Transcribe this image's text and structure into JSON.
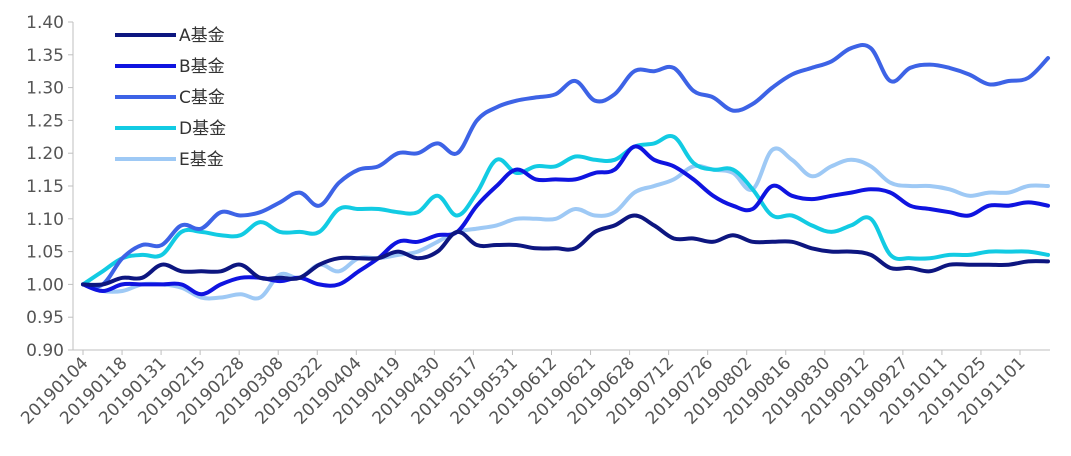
{
  "chart_data": {
    "type": "line",
    "title": "",
    "xlabel": "",
    "ylabel": "",
    "ylim": [
      0.9,
      1.4
    ],
    "y_ticks": [
      "0.90",
      "0.95",
      "1.00",
      "1.05",
      "1.10",
      "1.15",
      "1.20",
      "1.25",
      "1.30",
      "1.35",
      "1.40"
    ],
    "grid": false,
    "legend_position": "top-left",
    "x_tick_labels": [
      "20190104",
      "20190118",
      "20190131",
      "20190215",
      "20190228",
      "20190308",
      "20190322",
      "20190404",
      "20190419",
      "20190430",
      "20190517",
      "20190531",
      "20190612",
      "20190621",
      "20190628",
      "20190712",
      "20190726",
      "20190802",
      "20190816",
      "20190830",
      "20190912",
      "20190927",
      "20191011",
      "20191025",
      "20191101"
    ],
    "series": [
      {
        "name": "A基金",
        "color": "#0d1680",
        "width": 4,
        "values": [
          1.0,
          1.0,
          1.01,
          1.01,
          1.03,
          1.02,
          1.02,
          1.02,
          1.03,
          1.01,
          1.01,
          1.01,
          1.03,
          1.04,
          1.04,
          1.04,
          1.05,
          1.04,
          1.05,
          1.08,
          1.06,
          1.06,
          1.06,
          1.055,
          1.055,
          1.055,
          1.08,
          1.09,
          1.105,
          1.09,
          1.07,
          1.07,
          1.065,
          1.075,
          1.065,
          1.065,
          1.065,
          1.055,
          1.05,
          1.05,
          1.045,
          1.025,
          1.025,
          1.02,
          1.03,
          1.03,
          1.03,
          1.03,
          1.035,
          1.035
        ]
      },
      {
        "name": "B基金",
        "color": "#0f14e0",
        "width": 4,
        "values": [
          1.0,
          0.99,
          1.0,
          1.0,
          1.0,
          1.0,
          0.985,
          1.0,
          1.01,
          1.01,
          1.005,
          1.01,
          1.0,
          1.0,
          1.02,
          1.04,
          1.065,
          1.065,
          1.075,
          1.08,
          1.12,
          1.15,
          1.175,
          1.16,
          1.16,
          1.16,
          1.17,
          1.175,
          1.21,
          1.19,
          1.18,
          1.16,
          1.135,
          1.12,
          1.115,
          1.15,
          1.135,
          1.13,
          1.135,
          1.14,
          1.145,
          1.14,
          1.12,
          1.115,
          1.11,
          1.105,
          1.12,
          1.12,
          1.125,
          1.12
        ]
      },
      {
        "name": "C基金",
        "color": "#3d63e6",
        "width": 4,
        "values": [
          1.0,
          1.0,
          1.04,
          1.06,
          1.06,
          1.09,
          1.085,
          1.11,
          1.105,
          1.11,
          1.125,
          1.14,
          1.12,
          1.155,
          1.175,
          1.18,
          1.2,
          1.2,
          1.215,
          1.2,
          1.25,
          1.27,
          1.28,
          1.285,
          1.29,
          1.31,
          1.28,
          1.29,
          1.325,
          1.325,
          1.33,
          1.295,
          1.285,
          1.265,
          1.275,
          1.3,
          1.32,
          1.33,
          1.34,
          1.36,
          1.36,
          1.31,
          1.33,
          1.335,
          1.33,
          1.32,
          1.305,
          1.31,
          1.315,
          1.345
        ]
      },
      {
        "name": "D基金",
        "color": "#12cbe3",
        "width": 4,
        "values": [
          1.0,
          1.02,
          1.04,
          1.045,
          1.045,
          1.08,
          1.08,
          1.075,
          1.075,
          1.095,
          1.08,
          1.08,
          1.08,
          1.115,
          1.115,
          1.115,
          1.11,
          1.11,
          1.135,
          1.105,
          1.14,
          1.19,
          1.17,
          1.18,
          1.18,
          1.195,
          1.19,
          1.19,
          1.21,
          1.215,
          1.225,
          1.185,
          1.175,
          1.175,
          1.145,
          1.105,
          1.105,
          1.09,
          1.08,
          1.09,
          1.1,
          1.045,
          1.04,
          1.04,
          1.045,
          1.045,
          1.05,
          1.05,
          1.05,
          1.045
        ]
      },
      {
        "name": "E基金",
        "color": "#9ec9f5",
        "width": 4,
        "values": [
          1.0,
          0.99,
          0.99,
          1.0,
          1.0,
          0.995,
          0.98,
          0.98,
          0.985,
          0.98,
          1.015,
          1.01,
          1.03,
          1.02,
          1.04,
          1.04,
          1.045,
          1.05,
          1.065,
          1.08,
          1.085,
          1.09,
          1.1,
          1.1,
          1.1,
          1.115,
          1.105,
          1.11,
          1.14,
          1.15,
          1.16,
          1.18,
          1.175,
          1.17,
          1.145,
          1.205,
          1.19,
          1.165,
          1.18,
          1.19,
          1.18,
          1.155,
          1.15,
          1.15,
          1.145,
          1.135,
          1.14,
          1.14,
          1.15,
          1.15
        ]
      }
    ]
  }
}
